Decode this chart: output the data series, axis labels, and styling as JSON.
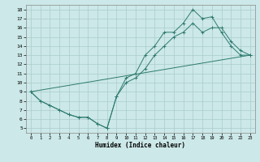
{
  "xlabel": "Humidex (Indice chaleur)",
  "background_color": "#cce8e8",
  "grid_color": "#aacccc",
  "line_color": "#2d7a6e",
  "xlim": [
    -0.5,
    23.5
  ],
  "ylim": [
    4.5,
    18.5
  ],
  "xticks": [
    0,
    1,
    2,
    3,
    4,
    5,
    6,
    7,
    8,
    9,
    10,
    11,
    12,
    13,
    14,
    15,
    16,
    17,
    18,
    19,
    20,
    21,
    22,
    23
  ],
  "yticks": [
    5,
    6,
    7,
    8,
    9,
    10,
    11,
    12,
    13,
    14,
    15,
    16,
    17,
    18
  ],
  "line1_x": [
    0,
    1,
    2,
    3,
    4,
    5,
    6,
    7,
    8,
    9,
    10,
    11,
    12,
    13,
    14,
    15,
    16,
    17,
    18,
    19,
    20,
    21,
    22,
    23
  ],
  "line1_y": [
    9.0,
    8.0,
    7.5,
    7.0,
    6.5,
    6.2,
    6.2,
    5.5,
    5.0,
    8.5,
    10.5,
    11.0,
    13.0,
    14.0,
    15.5,
    15.5,
    16.5,
    18.0,
    17.0,
    17.2,
    15.5,
    14.0,
    13.0,
    13.0
  ],
  "line2_x": [
    0,
    1,
    2,
    3,
    4,
    5,
    6,
    7,
    8,
    9,
    10,
    11,
    12,
    13,
    14,
    15,
    16,
    17,
    18,
    19,
    20,
    21,
    22,
    23
  ],
  "line2_y": [
    9.0,
    8.0,
    7.5,
    7.0,
    6.5,
    6.2,
    6.2,
    5.5,
    5.0,
    8.5,
    10.0,
    10.5,
    11.5,
    13.0,
    14.0,
    15.0,
    15.5,
    16.5,
    15.5,
    16.0,
    16.0,
    14.5,
    13.5,
    13.0
  ],
  "line3_x": [
    0,
    23
  ],
  "line3_y": [
    9.0,
    13.0
  ]
}
